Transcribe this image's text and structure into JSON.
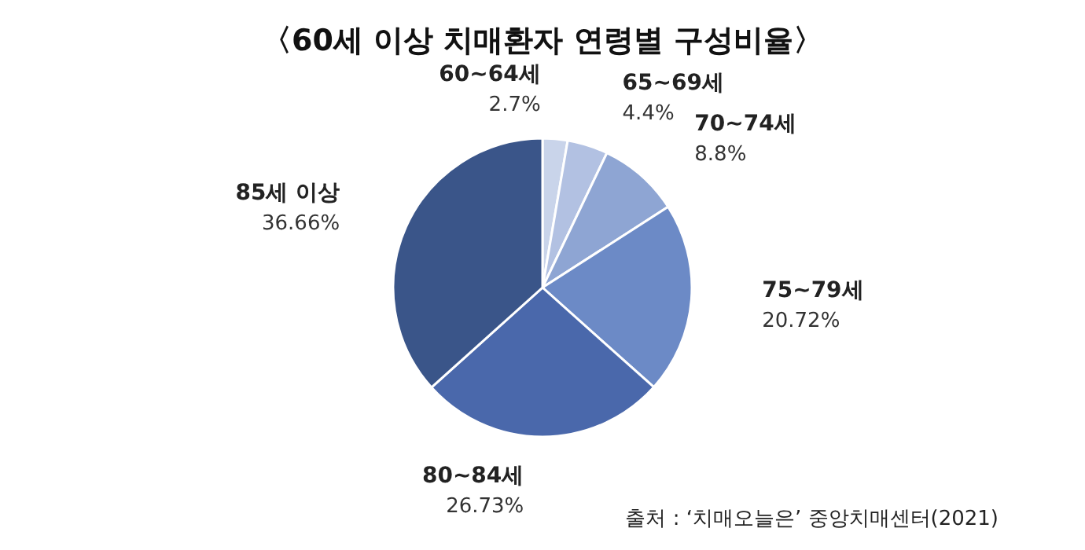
{
  "chart_data": {
    "type": "pie",
    "title": "〈60세 이상 치매환자 연령별 구성비율〉",
    "categories": [
      "60~64세",
      "65~69세",
      "70~74세",
      "75~79세",
      "80~84세",
      "85세 이상"
    ],
    "values": [
      2.7,
      4.4,
      8.8,
      20.72,
      26.73,
      36.66
    ],
    "value_labels": [
      "2.7%",
      "4.4%",
      "8.8%",
      "20.72%",
      "26.73%",
      "36.66%"
    ],
    "colors": [
      "#c9d4ea",
      "#b2c1e2",
      "#8ea5d3",
      "#6c8ac6",
      "#4a68ab",
      "#3a5589"
    ],
    "annotations": [
      "출처 : ‘치매오늘은’ 중앙치매센터(2021)"
    ]
  }
}
